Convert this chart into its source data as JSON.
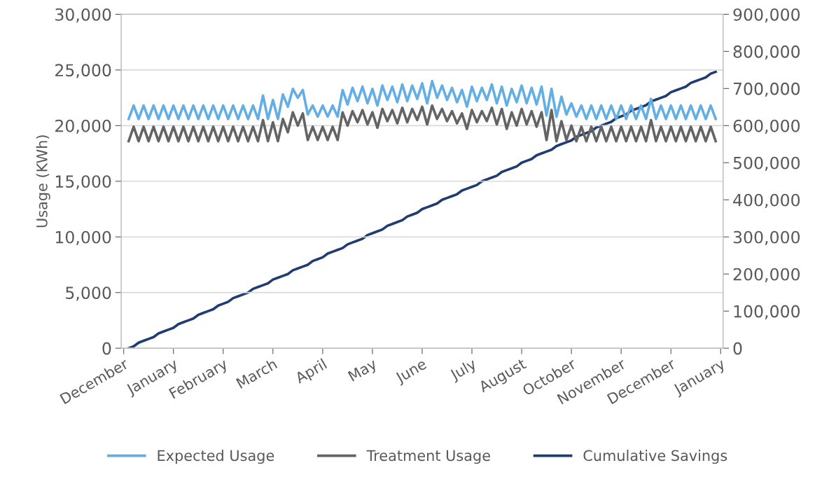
{
  "chart_data": {
    "type": "line",
    "ylabel": "Usage (KWh)",
    "categories": [
      "December",
      null,
      null,
      null,
      null,
      null,
      null,
      null,
      null,
      null,
      "January",
      null,
      null,
      null,
      null,
      null,
      null,
      null,
      null,
      null,
      "February",
      null,
      null,
      null,
      null,
      null,
      null,
      null,
      null,
      null,
      "March",
      null,
      null,
      null,
      null,
      null,
      null,
      null,
      null,
      null,
      "April",
      null,
      null,
      null,
      null,
      null,
      null,
      null,
      null,
      null,
      "May",
      null,
      null,
      null,
      null,
      null,
      null,
      null,
      null,
      null,
      "June",
      null,
      null,
      null,
      null,
      null,
      null,
      null,
      null,
      null,
      "July",
      null,
      null,
      null,
      null,
      null,
      null,
      null,
      null,
      null,
      "August",
      null,
      null,
      null,
      null,
      null,
      null,
      null,
      null,
      null,
      "October",
      null,
      null,
      null,
      null,
      null,
      null,
      null,
      null,
      null,
      "November",
      null,
      null,
      null,
      null,
      null,
      null,
      null,
      null,
      null,
      "December",
      null,
      null,
      null,
      null,
      null,
      null,
      null,
      null,
      null,
      "January"
    ],
    "series": [
      {
        "name": "Expected Usage",
        "color": "#63aee5",
        "values": [
          null,
          20600,
          21800,
          20600,
          21800,
          20600,
          21800,
          20600,
          21800,
          20600,
          21800,
          20600,
          21800,
          20600,
          21800,
          20600,
          21800,
          20600,
          21800,
          20600,
          21800,
          20600,
          21800,
          20600,
          21800,
          20600,
          21800,
          20600,
          22700,
          20600,
          22300,
          20600,
          22800,
          21700,
          23300,
          22500,
          23200,
          21000,
          21800,
          20800,
          21800,
          20800,
          21800,
          20800,
          23200,
          21900,
          23400,
          22200,
          23500,
          22000,
          23300,
          21800,
          23600,
          22300,
          23500,
          22100,
          23700,
          22200,
          23600,
          22400,
          23800,
          22000,
          24000,
          22500,
          23600,
          22300,
          23400,
          22100,
          23200,
          21700,
          23500,
          22200,
          23400,
          22300,
          23700,
          22000,
          23500,
          21800,
          23300,
          22100,
          23600,
          22000,
          23400,
          21900,
          23500,
          20900,
          23300,
          20800,
          22600,
          21000,
          22000,
          20800,
          21800,
          20600,
          21800,
          20600,
          21800,
          20600,
          21800,
          20600,
          21800,
          20600,
          21800,
          20600,
          21800,
          20600,
          22400,
          20600,
          21800,
          20600,
          21800,
          20600,
          21800,
          20600,
          21800,
          20600,
          21800,
          20600,
          21800,
          20600,
          null
        ]
      },
      {
        "name": "Treatment Usage",
        "color": "#646464",
        "values": [
          null,
          18600,
          19900,
          18600,
          19900,
          18600,
          19900,
          18600,
          19900,
          18600,
          19900,
          18600,
          19900,
          18600,
          19900,
          18600,
          19900,
          18600,
          19900,
          18600,
          19900,
          18600,
          19900,
          18600,
          19900,
          18600,
          19900,
          18600,
          20500,
          18600,
          20300,
          18600,
          20600,
          19400,
          21200,
          20000,
          21100,
          18700,
          19900,
          18700,
          19900,
          18700,
          19900,
          18700,
          21200,
          20000,
          21300,
          20300,
          21400,
          20100,
          21200,
          19800,
          21500,
          20400,
          21400,
          20200,
          21600,
          20300,
          21500,
          20500,
          21700,
          20100,
          21800,
          20600,
          21500,
          20400,
          21300,
          20200,
          21100,
          19700,
          21400,
          20300,
          21300,
          20400,
          21600,
          20100,
          21500,
          19700,
          21200,
          20000,
          21500,
          20100,
          21300,
          19900,
          21200,
          18700,
          21400,
          18600,
          20400,
          18700,
          20000,
          18600,
          19900,
          18600,
          19900,
          18600,
          19900,
          18600,
          19900,
          18600,
          19900,
          18600,
          19900,
          18600,
          19900,
          18600,
          20500,
          18600,
          19900,
          18600,
          19900,
          18600,
          19900,
          18600,
          19900,
          18600,
          19900,
          18600,
          19900,
          18600,
          null
        ]
      },
      {
        "name": "Cumulative Savings",
        "color": "#1f3c73",
        "axis": "y2",
        "values": [
          null,
          0,
          5000,
          15000,
          20000,
          25000,
          30000,
          40000,
          45000,
          50000,
          55000,
          65000,
          70000,
          75000,
          80000,
          90000,
          95000,
          100000,
          105000,
          115000,
          120000,
          125000,
          135000,
          140000,
          145000,
          150000,
          160000,
          165000,
          170000,
          175000,
          185000,
          190000,
          195000,
          200000,
          210000,
          215000,
          220000,
          225000,
          235000,
          240000,
          245000,
          255000,
          260000,
          265000,
          270000,
          280000,
          285000,
          290000,
          295000,
          305000,
          310000,
          315000,
          320000,
          330000,
          335000,
          340000,
          345000,
          355000,
          360000,
          365000,
          375000,
          380000,
          385000,
          390000,
          400000,
          405000,
          410000,
          415000,
          425000,
          430000,
          435000,
          440000,
          450000,
          455000,
          460000,
          465000,
          475000,
          480000,
          485000,
          490000,
          500000,
          505000,
          510000,
          520000,
          525000,
          530000,
          535000,
          545000,
          550000,
          555000,
          560000,
          570000,
          575000,
          580000,
          585000,
          595000,
          600000,
          605000,
          610000,
          620000,
          625000,
          630000,
          640000,
          645000,
          650000,
          655000,
          665000,
          670000,
          675000,
          680000,
          690000,
          695000,
          700000,
          705000,
          715000,
          720000,
          725000,
          730000,
          740000,
          745000,
          null
        ]
      }
    ],
    "ylim": [
      0,
      30000
    ],
    "yticks": [
      {
        "value": 0,
        "label": "0"
      },
      {
        "value": 5000,
        "label": "5,000"
      },
      {
        "value": 10000,
        "label": "10,000"
      },
      {
        "value": 15000,
        "label": "15,000"
      },
      {
        "value": 20000,
        "label": "20,000"
      },
      {
        "value": 25000,
        "label": "25,000"
      },
      {
        "value": 30000,
        "label": "30,000"
      }
    ],
    "y2lim": [
      0,
      900000
    ],
    "y2ticks": [
      {
        "value": 0,
        "label": "0"
      },
      {
        "value": 100000,
        "label": "100,000"
      },
      {
        "value": 200000,
        "label": "200,000"
      },
      {
        "value": 300000,
        "label": "300,000"
      },
      {
        "value": 400000,
        "label": "400,000"
      },
      {
        "value": 500000,
        "label": "500,000"
      },
      {
        "value": 600000,
        "label": "600,000"
      },
      {
        "value": 700000,
        "label": "700,000"
      },
      {
        "value": 800000,
        "label": "800,000"
      },
      {
        "value": 900000,
        "label": "900,000"
      }
    ],
    "grid": "y",
    "legend": "bottom",
    "marker": "none",
    "line_style": "solid"
  }
}
